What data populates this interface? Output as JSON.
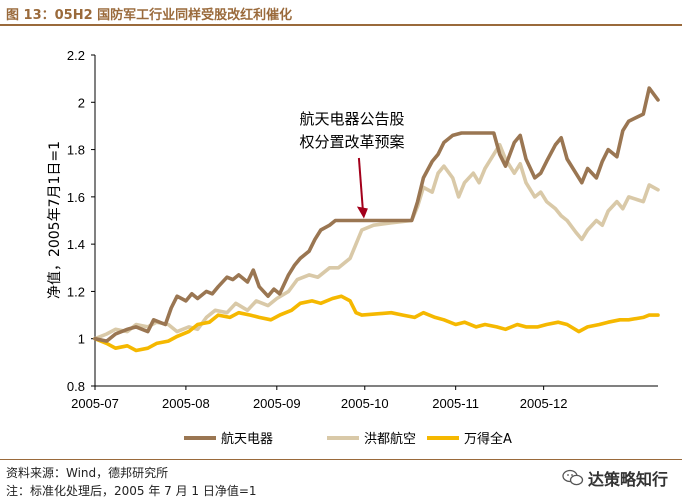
{
  "figure": {
    "title": "图 13：05H2 国防军工行业同样受股改红利催化",
    "source": "资料来源：Wind，德邦研究所",
    "note": "注：标准化处理后，2005 年 7 月 1 日净值=1",
    "watermark": "达策略知行",
    "watermark_icon": "wechat-icon"
  },
  "chart_data": {
    "type": "line",
    "ylabel": "净值，2005年7月1日=1",
    "xlabel": "",
    "ylim": [
      0.8,
      2.2
    ],
    "yticks": [
      "0.8",
      "1",
      "1.2",
      "1.4",
      "1.6",
      "1.8",
      "2",
      "2.2"
    ],
    "xticks": [
      "2005-07",
      "2005-08",
      "2005-09",
      "2005-10",
      "2005-11",
      "2005-12"
    ],
    "grid": false,
    "legend_position": "bottom",
    "annotation": {
      "lines": [
        "航天电器公告股",
        "权分置改革预案"
      ],
      "x": "2005-09-29",
      "y": 1.5
    },
    "series": [
      {
        "name": "航天电器",
        "color": "#9a7652",
        "points": [
          [
            "2005-07-01",
            1.0
          ],
          [
            "2005-07-05",
            0.99
          ],
          [
            "2005-07-08",
            1.02
          ],
          [
            "2005-07-12",
            1.04
          ],
          [
            "2005-07-15",
            1.05
          ],
          [
            "2005-07-19",
            1.03
          ],
          [
            "2005-07-21",
            1.08
          ],
          [
            "2005-07-25",
            1.06
          ],
          [
            "2005-07-27",
            1.13
          ],
          [
            "2005-07-29",
            1.18
          ],
          [
            "2005-08-01",
            1.16
          ],
          [
            "2005-08-03",
            1.19
          ],
          [
            "2005-08-05",
            1.17
          ],
          [
            "2005-08-08",
            1.2
          ],
          [
            "2005-08-10",
            1.19
          ],
          [
            "2005-08-12",
            1.22
          ],
          [
            "2005-08-15",
            1.26
          ],
          [
            "2005-08-17",
            1.25
          ],
          [
            "2005-08-19",
            1.27
          ],
          [
            "2005-08-22",
            1.24
          ],
          [
            "2005-08-24",
            1.29
          ],
          [
            "2005-08-26",
            1.22
          ],
          [
            "2005-08-29",
            1.18
          ],
          [
            "2005-08-31",
            1.21
          ],
          [
            "2005-09-02",
            1.19
          ],
          [
            "2005-09-05",
            1.27
          ],
          [
            "2005-09-07",
            1.31
          ],
          [
            "2005-09-09",
            1.34
          ],
          [
            "2005-09-12",
            1.37
          ],
          [
            "2005-09-14",
            1.42
          ],
          [
            "2005-09-16",
            1.46
          ],
          [
            "2005-09-19",
            1.48
          ],
          [
            "2005-09-21",
            1.5
          ],
          [
            "2005-09-23",
            1.5
          ],
          [
            "2005-10-14",
            1.5
          ],
          [
            "2005-10-17",
            1.5
          ],
          [
            "2005-10-19",
            1.58
          ],
          [
            "2005-10-21",
            1.68
          ],
          [
            "2005-10-24",
            1.75
          ],
          [
            "2005-10-26",
            1.78
          ],
          [
            "2005-10-28",
            1.83
          ],
          [
            "2005-10-31",
            1.86
          ],
          [
            "2005-11-03",
            1.87
          ],
          [
            "2005-11-10",
            1.87
          ],
          [
            "2005-11-14",
            1.87
          ],
          [
            "2005-11-16",
            1.78
          ],
          [
            "2005-11-18",
            1.73
          ],
          [
            "2005-11-21",
            1.83
          ],
          [
            "2005-11-23",
            1.86
          ],
          [
            "2005-11-25",
            1.76
          ],
          [
            "2005-11-28",
            1.68
          ],
          [
            "2005-11-30",
            1.7
          ],
          [
            "2005-12-02",
            1.75
          ],
          [
            "2005-12-05",
            1.82
          ],
          [
            "2005-12-07",
            1.85
          ],
          [
            "2005-12-09",
            1.76
          ],
          [
            "2005-12-12",
            1.7
          ],
          [
            "2005-12-14",
            1.66
          ],
          [
            "2005-12-16",
            1.72
          ],
          [
            "2005-12-19",
            1.68
          ],
          [
            "2005-12-21",
            1.75
          ],
          [
            "2005-12-23",
            1.8
          ],
          [
            "2005-12-26",
            1.77
          ],
          [
            "2005-12-28",
            1.88
          ],
          [
            "2005-12-30",
            1.92
          ],
          [
            "2006-01-04",
            1.95
          ],
          [
            "2006-01-06",
            2.06
          ],
          [
            "2006-01-09",
            2.01
          ]
        ]
      },
      {
        "name": "洪都航空",
        "color": "#d9c9a8",
        "points": [
          [
            "2005-07-01",
            1.0
          ],
          [
            "2005-07-05",
            1.02
          ],
          [
            "2005-07-08",
            1.04
          ],
          [
            "2005-07-12",
            1.03
          ],
          [
            "2005-07-15",
            1.06
          ],
          [
            "2005-07-19",
            1.05
          ],
          [
            "2005-07-22",
            1.07
          ],
          [
            "2005-07-26",
            1.06
          ],
          [
            "2005-07-29",
            1.03
          ],
          [
            "2005-08-02",
            1.05
          ],
          [
            "2005-08-05",
            1.04
          ],
          [
            "2005-08-08",
            1.09
          ],
          [
            "2005-08-11",
            1.12
          ],
          [
            "2005-08-15",
            1.11
          ],
          [
            "2005-08-18",
            1.15
          ],
          [
            "2005-08-22",
            1.12
          ],
          [
            "2005-08-25",
            1.16
          ],
          [
            "2005-08-29",
            1.14
          ],
          [
            "2005-09-01",
            1.17
          ],
          [
            "2005-09-05",
            1.2
          ],
          [
            "2005-09-08",
            1.25
          ],
          [
            "2005-09-12",
            1.27
          ],
          [
            "2005-09-15",
            1.26
          ],
          [
            "2005-09-19",
            1.3
          ],
          [
            "2005-09-22",
            1.3
          ],
          [
            "2005-09-26",
            1.34
          ],
          [
            "2005-09-28",
            1.4
          ],
          [
            "2005-09-30",
            1.46
          ],
          [
            "2005-10-04",
            1.48
          ],
          [
            "2005-10-10",
            1.49
          ],
          [
            "2005-10-17",
            1.5
          ],
          [
            "2005-10-19",
            1.56
          ],
          [
            "2005-10-21",
            1.64
          ],
          [
            "2005-10-24",
            1.62
          ],
          [
            "2005-10-26",
            1.7
          ],
          [
            "2005-10-28",
            1.73
          ],
          [
            "2005-10-31",
            1.68
          ],
          [
            "2005-11-02",
            1.6
          ],
          [
            "2005-11-04",
            1.66
          ],
          [
            "2005-11-07",
            1.7
          ],
          [
            "2005-11-09",
            1.66
          ],
          [
            "2005-11-11",
            1.72
          ],
          [
            "2005-11-14",
            1.78
          ],
          [
            "2005-11-16",
            1.82
          ],
          [
            "2005-11-18",
            1.76
          ],
          [
            "2005-11-21",
            1.7
          ],
          [
            "2005-11-23",
            1.74
          ],
          [
            "2005-11-25",
            1.66
          ],
          [
            "2005-11-28",
            1.6
          ],
          [
            "2005-11-30",
            1.62
          ],
          [
            "2005-12-02",
            1.58
          ],
          [
            "2005-12-05",
            1.55
          ],
          [
            "2005-12-07",
            1.52
          ],
          [
            "2005-12-09",
            1.5
          ],
          [
            "2005-12-12",
            1.45
          ],
          [
            "2005-12-14",
            1.42
          ],
          [
            "2005-12-16",
            1.46
          ],
          [
            "2005-12-19",
            1.5
          ],
          [
            "2005-12-21",
            1.48
          ],
          [
            "2005-12-23",
            1.54
          ],
          [
            "2005-12-26",
            1.58
          ],
          [
            "2005-12-28",
            1.55
          ],
          [
            "2005-12-30",
            1.6
          ],
          [
            "2006-01-04",
            1.58
          ],
          [
            "2006-01-06",
            1.65
          ],
          [
            "2006-01-09",
            1.63
          ]
        ]
      },
      {
        "name": "万得全A",
        "color": "#f5b800",
        "points": [
          [
            "2005-07-01",
            1.0
          ],
          [
            "2005-07-05",
            0.98
          ],
          [
            "2005-07-08",
            0.96
          ],
          [
            "2005-07-12",
            0.97
          ],
          [
            "2005-07-15",
            0.95
          ],
          [
            "2005-07-19",
            0.96
          ],
          [
            "2005-07-22",
            0.98
          ],
          [
            "2005-07-26",
            0.99
          ],
          [
            "2005-07-29",
            1.01
          ],
          [
            "2005-08-02",
            1.03
          ],
          [
            "2005-08-05",
            1.06
          ],
          [
            "2005-08-09",
            1.07
          ],
          [
            "2005-08-12",
            1.1
          ],
          [
            "2005-08-16",
            1.09
          ],
          [
            "2005-08-19",
            1.11
          ],
          [
            "2005-08-23",
            1.1
          ],
          [
            "2005-08-26",
            1.09
          ],
          [
            "2005-08-30",
            1.08
          ],
          [
            "2005-09-02",
            1.1
          ],
          [
            "2005-09-06",
            1.12
          ],
          [
            "2005-09-09",
            1.15
          ],
          [
            "2005-09-13",
            1.16
          ],
          [
            "2005-09-16",
            1.15
          ],
          [
            "2005-09-20",
            1.17
          ],
          [
            "2005-09-23",
            1.18
          ],
          [
            "2005-09-26",
            1.16
          ],
          [
            "2005-09-28",
            1.11
          ],
          [
            "2005-09-30",
            1.1
          ],
          [
            "2005-10-10",
            1.11
          ],
          [
            "2005-10-14",
            1.1
          ],
          [
            "2005-10-18",
            1.09
          ],
          [
            "2005-10-21",
            1.11
          ],
          [
            "2005-10-25",
            1.09
          ],
          [
            "2005-10-28",
            1.08
          ],
          [
            "2005-11-01",
            1.06
          ],
          [
            "2005-11-04",
            1.07
          ],
          [
            "2005-11-08",
            1.05
          ],
          [
            "2005-11-11",
            1.06
          ],
          [
            "2005-11-15",
            1.05
          ],
          [
            "2005-11-18",
            1.04
          ],
          [
            "2005-11-22",
            1.06
          ],
          [
            "2005-11-25",
            1.05
          ],
          [
            "2005-11-29",
            1.05
          ],
          [
            "2005-12-02",
            1.06
          ],
          [
            "2005-12-06",
            1.07
          ],
          [
            "2005-12-09",
            1.06
          ],
          [
            "2005-12-13",
            1.03
          ],
          [
            "2005-12-16",
            1.05
          ],
          [
            "2005-12-20",
            1.06
          ],
          [
            "2005-12-23",
            1.07
          ],
          [
            "2005-12-27",
            1.08
          ],
          [
            "2005-12-30",
            1.08
          ],
          [
            "2006-01-04",
            1.09
          ],
          [
            "2006-01-06",
            1.1
          ],
          [
            "2006-01-09",
            1.1
          ]
        ]
      }
    ]
  }
}
